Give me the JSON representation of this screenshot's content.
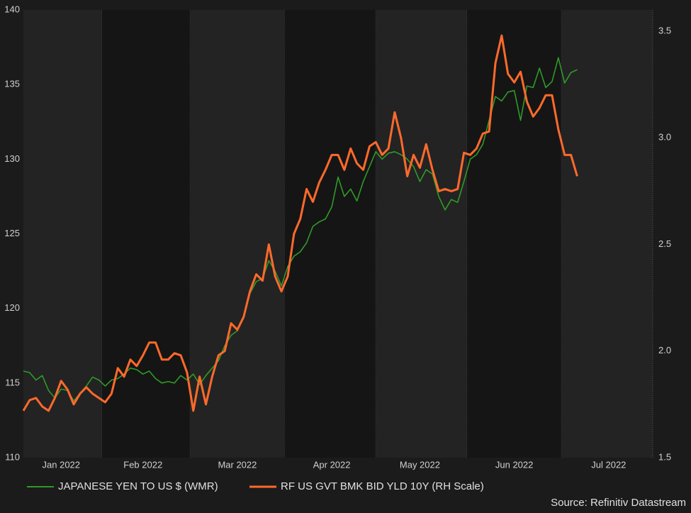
{
  "chart_data": {
    "type": "line",
    "source": "Source: Refinitiv Datastream",
    "categories": [
      null,
      null,
      null,
      null,
      null,
      null,
      "Jan 2022",
      null,
      null,
      null,
      null,
      null,
      null,
      null,
      null,
      null,
      null,
      null,
      null,
      "Feb 2022",
      null,
      null,
      null,
      null,
      null,
      null,
      null,
      null,
      null,
      null,
      null,
      null,
      null,
      null,
      "Mar 2022",
      null,
      null,
      null,
      null,
      null,
      null,
      null,
      null,
      null,
      null,
      null,
      null,
      null,
      null,
      "Apr 2022",
      null,
      null,
      null,
      null,
      null,
      null,
      null,
      null,
      null,
      null,
      null,
      null,
      null,
      "May 2022",
      null,
      null,
      null,
      null,
      null,
      null,
      null,
      null,
      null,
      null,
      null,
      null,
      null,
      null,
      "Jun 2022",
      null,
      null,
      null,
      null,
      null,
      null,
      null,
      null,
      null,
      null,
      null,
      null,
      null,
      null,
      "Jul 2022",
      null,
      null,
      null,
      null,
      null,
      null,
      null
    ],
    "series": [
      {
        "name": "JAPANESE YEN TO US $ (WMR)",
        "color": "#2f9a28",
        "axis": "y",
        "values": [
          115.8,
          115.7,
          115.2,
          115.5,
          114.5,
          114.0,
          114.6,
          114.5,
          113.8,
          114.3,
          114.8,
          115.4,
          115.2,
          114.8,
          115.2,
          115.3,
          115.6,
          116.0,
          115.9,
          115.6,
          115.8,
          115.3,
          115.0,
          115.1,
          115.0,
          115.5,
          115.2,
          115.6,
          114.9,
          115.5,
          116.0,
          116.5,
          117.5,
          118.2,
          118.5,
          119.5,
          121.0,
          121.8,
          122.0,
          123.2,
          122.5,
          121.5,
          122.8,
          123.5,
          123.8,
          124.4,
          125.5,
          125.8,
          126.0,
          126.8,
          128.8,
          127.5,
          128.0,
          127.2,
          128.5,
          129.5,
          130.5,
          130.0,
          130.4,
          130.5,
          130.3,
          130.0,
          129.5,
          128.5,
          129.3,
          129.0,
          127.5,
          126.6,
          127.3,
          127.1,
          128.5,
          130.0,
          130.3,
          131.0,
          132.6,
          134.2,
          133.9,
          134.5,
          134.6,
          132.6,
          134.9,
          134.8,
          136.1,
          134.8,
          135.2,
          136.8,
          135.1,
          135.8,
          136.0,
          null,
          null,
          null,
          null,
          null,
          null,
          null,
          null,
          null,
          null,
          null,
          null
        ]
      },
      {
        "name": "RF US GVT BMK BID YLD 10Y (RH Scale)",
        "color": "#ff6a2b",
        "axis": "y2",
        "values": [
          1.72,
          1.77,
          1.78,
          1.74,
          1.72,
          1.78,
          1.86,
          1.82,
          1.75,
          1.8,
          1.83,
          1.8,
          1.78,
          1.76,
          1.8,
          1.92,
          1.88,
          1.96,
          1.93,
          1.98,
          2.04,
          2.04,
          1.96,
          1.96,
          1.99,
          1.98,
          1.9,
          1.72,
          1.88,
          1.75,
          1.88,
          1.98,
          2.0,
          2.13,
          2.1,
          2.16,
          2.28,
          2.36,
          2.33,
          2.5,
          2.35,
          2.28,
          2.35,
          2.55,
          2.62,
          2.76,
          2.7,
          2.79,
          2.85,
          2.92,
          2.92,
          2.85,
          2.95,
          2.88,
          2.85,
          2.96,
          2.98,
          2.92,
          2.95,
          3.12,
          3.0,
          2.82,
          2.92,
          2.86,
          2.97,
          2.85,
          2.75,
          2.76,
          2.75,
          2.76,
          2.93,
          2.92,
          2.95,
          3.02,
          3.03,
          3.35,
          3.48,
          3.3,
          3.26,
          3.31,
          3.17,
          3.1,
          3.14,
          3.2,
          3.2,
          3.04,
          2.92,
          2.92,
          2.82,
          null,
          null,
          null,
          null,
          null,
          null,
          null,
          null,
          null,
          null,
          null,
          null
        ]
      }
    ],
    "ylim": [
      110,
      140
    ],
    "yticks": [
      110,
      115,
      120,
      125,
      130,
      135,
      140
    ],
    "y2lim": [
      1.5,
      3.6
    ],
    "y2ticks": [
      1.5,
      {
        "value": 2,
        "label": "2.0"
      },
      2.5,
      {
        "value": 3,
        "label": "3.0"
      },
      3.5
    ]
  }
}
